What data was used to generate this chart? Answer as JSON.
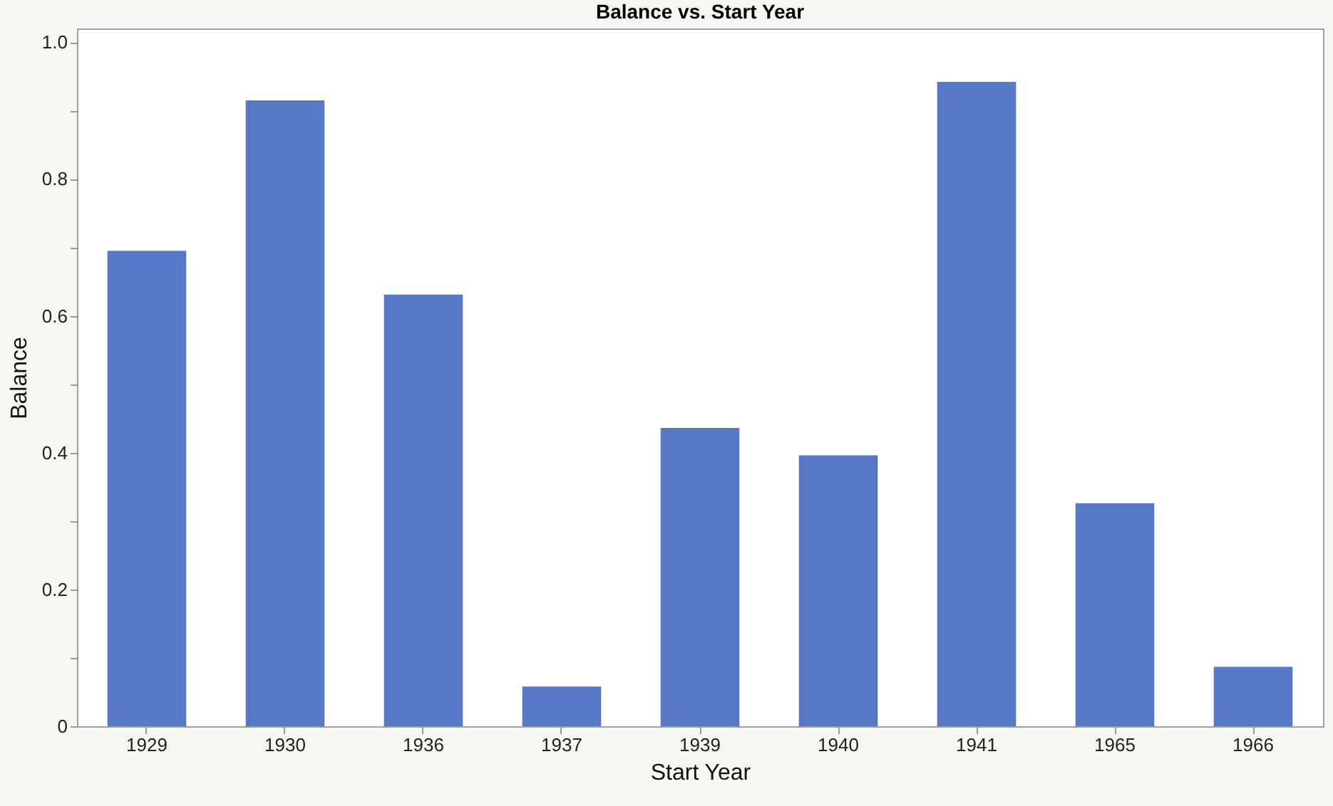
{
  "chart_data": {
    "type": "bar",
    "title": "Balance vs. Start Year",
    "xlabel": "Start Year",
    "ylabel": "Balance",
    "categories": [
      "1929",
      "1930",
      "1936",
      "1937",
      "1939",
      "1940",
      "1941",
      "1965",
      "1966"
    ],
    "values": [
      0.695,
      0.915,
      0.631,
      0.058,
      0.436,
      0.396,
      0.942,
      0.326,
      0.087
    ],
    "color": "#5778c4",
    "ylim": [
      0,
      1.02
    ],
    "yticks": [
      0,
      {
        "value": 0.1,
        "label": null
      },
      0.2,
      {
        "value": 0.3,
        "label": null
      },
      0.4,
      {
        "value": 0.5,
        "label": null
      },
      0.6,
      {
        "value": 0.7,
        "label": null
      },
      0.8,
      {
        "value": 0.9,
        "label": null
      },
      {
        "value": 1,
        "label": "1.0"
      }
    ],
    "grid": false
  }
}
